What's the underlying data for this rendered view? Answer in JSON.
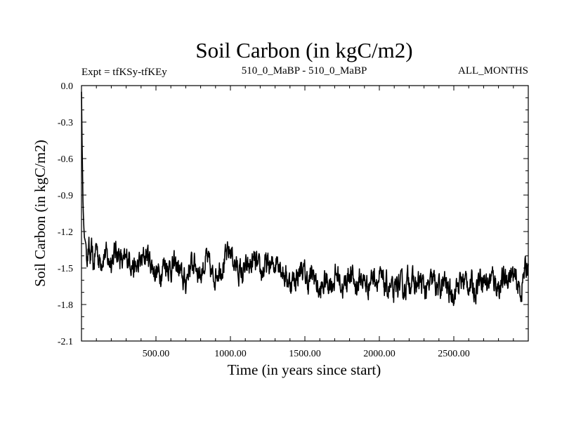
{
  "chart_data": {
    "type": "line",
    "title": "Soil Carbon (in kgC/m2)",
    "subtitle_left": "Expt = tfKSy-tfKEy",
    "subtitle_center": "510_0_MaBP - 510_0_MaBP",
    "subtitle_right": "ALL_MONTHS",
    "xlabel": "Time (in years since start)",
    "ylabel": "Soil Carbon (in kgC/m2)",
    "xlim": [
      0,
      3000
    ],
    "ylim": [
      -2.1,
      0.0
    ],
    "x_ticks": [
      500,
      1000,
      1500,
      2000,
      2500
    ],
    "x_tick_labels": [
      "500.00",
      "1000.00",
      "1500.00",
      "2000.00",
      "2500.00"
    ],
    "y_ticks": [
      0.0,
      -0.3,
      -0.6,
      -0.9,
      -1.2,
      -1.5,
      -1.8,
      -2.1
    ],
    "y_tick_labels": [
      "0.0",
      "-0.3",
      "-0.6",
      "-0.9",
      "-1.2",
      "-1.5",
      "-1.8",
      "-2.1"
    ],
    "grid": false,
    "series": [
      {
        "name": "Soil Carbon",
        "color": "#000000",
        "x": [
          0,
          5,
          10,
          15,
          20,
          30,
          40,
          50,
          60,
          70,
          80,
          100,
          120,
          140,
          160,
          180,
          200,
          240,
          280,
          320,
          360,
          400,
          440,
          480,
          520,
          560,
          600,
          640,
          680,
          700,
          720,
          760,
          800,
          840,
          880,
          920,
          960,
          1000,
          1040,
          1080,
          1120,
          1160,
          1200,
          1240,
          1280,
          1320,
          1360,
          1400,
          1440,
          1480,
          1520,
          1560,
          1600,
          1640,
          1680,
          1720,
          1760,
          1800,
          1840,
          1880,
          1920,
          1960,
          2000,
          2040,
          2080,
          2100,
          2120,
          2160,
          2200,
          2240,
          2280,
          2320,
          2360,
          2400,
          2440,
          2480,
          2520,
          2560,
          2600,
          2640,
          2680,
          2720,
          2760,
          2800,
          2840,
          2880,
          2920,
          2950,
          2970,
          2990,
          3000
        ],
        "y": [
          -0.05,
          -0.55,
          -0.95,
          -1.15,
          -1.25,
          -1.3,
          -1.4,
          -1.35,
          -1.45,
          -1.38,
          -1.5,
          -1.3,
          -1.45,
          -1.4,
          -1.38,
          -1.45,
          -1.42,
          -1.35,
          -1.48,
          -1.4,
          -1.52,
          -1.45,
          -1.38,
          -1.5,
          -1.55,
          -1.45,
          -1.5,
          -1.48,
          -1.6,
          -1.62,
          -1.5,
          -1.45,
          -1.55,
          -1.42,
          -1.58,
          -1.5,
          -1.45,
          -1.35,
          -1.5,
          -1.55,
          -1.5,
          -1.45,
          -1.55,
          -1.48,
          -1.5,
          -1.4,
          -1.55,
          -1.62,
          -1.58,
          -1.5,
          -1.62,
          -1.55,
          -1.72,
          -1.6,
          -1.62,
          -1.55,
          -1.68,
          -1.52,
          -1.65,
          -1.58,
          -1.65,
          -1.55,
          -1.6,
          -1.65,
          -1.68,
          -1.75,
          -1.62,
          -1.68,
          -1.58,
          -1.65,
          -1.62,
          -1.7,
          -1.6,
          -1.68,
          -1.62,
          -1.72,
          -1.65,
          -1.6,
          -1.62,
          -1.68,
          -1.55,
          -1.62,
          -1.58,
          -1.65,
          -1.6,
          -1.55,
          -1.62,
          -1.7,
          -1.55,
          -1.5,
          -1.42
        ]
      }
    ]
  }
}
